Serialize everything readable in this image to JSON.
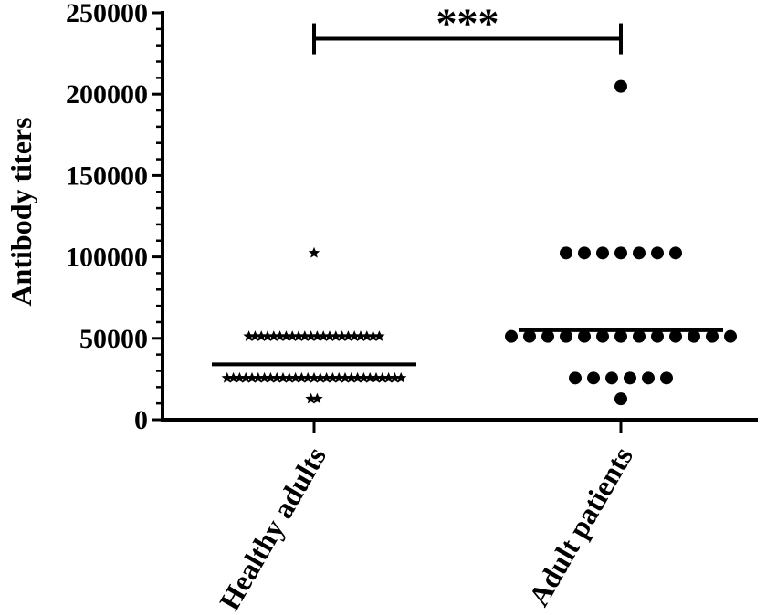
{
  "chart_data": {
    "type": "scatter",
    "ylabel": "Antibody titers",
    "xlabel": "",
    "ylim": [
      0,
      250000
    ],
    "yticks": [
      0,
      50000,
      100000,
      150000,
      200000,
      250000
    ],
    "ytick_labels": [
      "0",
      "50000",
      "100000",
      "150000",
      "200000",
      "250000"
    ],
    "minor_ticks_per_major": 4,
    "grid": false,
    "categories": [
      "Healthy adults",
      "Adult patients"
    ],
    "series": [
      {
        "category": "Healthy adults",
        "marker": "star",
        "mean": 34000,
        "groups": [
          {
            "value": 12800,
            "count": 2
          },
          {
            "value": 25600,
            "count": 29
          },
          {
            "value": 51200,
            "count": 22
          },
          {
            "value": 102400,
            "count": 1
          }
        ]
      },
      {
        "category": "Adult patients",
        "marker": "circle",
        "mean": 55000,
        "groups": [
          {
            "value": 12800,
            "count": 1
          },
          {
            "value": 25600,
            "count": 6
          },
          {
            "value": 51200,
            "count": 13
          },
          {
            "value": 102400,
            "count": 7
          },
          {
            "value": 204800,
            "count": 1
          }
        ]
      }
    ],
    "significance": {
      "between": [
        "Healthy adults",
        "Adult patients"
      ],
      "label": "***",
      "level": 234000
    }
  }
}
